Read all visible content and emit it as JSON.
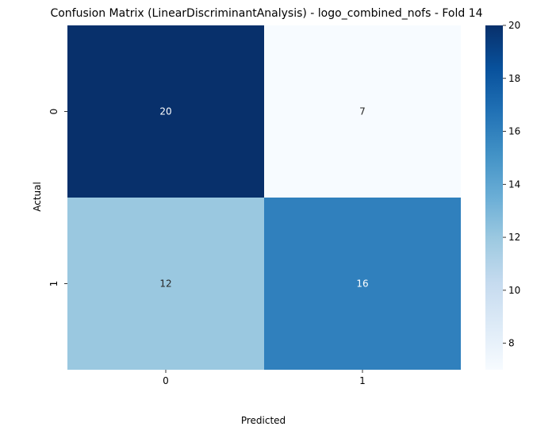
{
  "chart_data": {
    "type": "heatmap",
    "title": "Confusion Matrix (LinearDiscriminantAnalysis) - logo_combined_nofs - Fold 14",
    "xlabel": "Predicted",
    "ylabel": "Actual",
    "x_categories": [
      "0",
      "1"
    ],
    "y_categories": [
      "0",
      "1"
    ],
    "values": [
      [
        20,
        7
      ],
      [
        12,
        16
      ]
    ],
    "colormap": "Blues",
    "vmin": 7,
    "vmax": 20,
    "colorbar_ticks": [
      8,
      10,
      12,
      14,
      16,
      18,
      20
    ]
  }
}
